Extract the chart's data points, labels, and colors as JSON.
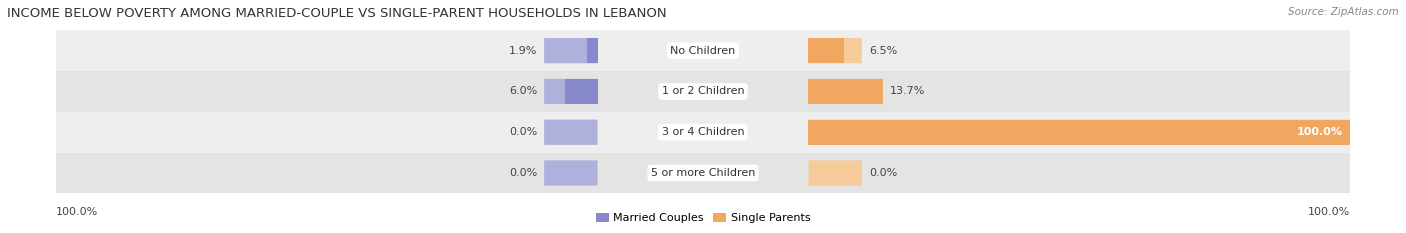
{
  "title": "INCOME BELOW POVERTY AMONG MARRIED-COUPLE VS SINGLE-PARENT HOUSEHOLDS IN LEBANON",
  "source": "Source: ZipAtlas.com",
  "categories": [
    "No Children",
    "1 or 2 Children",
    "3 or 4 Children",
    "5 or more Children"
  ],
  "married_values": [
    1.9,
    6.0,
    0.0,
    0.0
  ],
  "single_values": [
    6.5,
    13.7,
    100.0,
    0.0
  ],
  "married_color": "#8888cc",
  "married_track_color": "#b0b0dd",
  "single_color": "#f0a860",
  "single_track_color": "#f5cc99",
  "row_bg_even": "#eeeeee",
  "row_bg_odd": "#e4e4e4",
  "max_value": 100.0,
  "legend_married": "Married Couples",
  "legend_single": "Single Parents",
  "left_label": "100.0%",
  "right_label": "100.0%",
  "title_fontsize": 9.5,
  "label_fontsize": 8,
  "category_fontsize": 8,
  "source_fontsize": 7.5
}
